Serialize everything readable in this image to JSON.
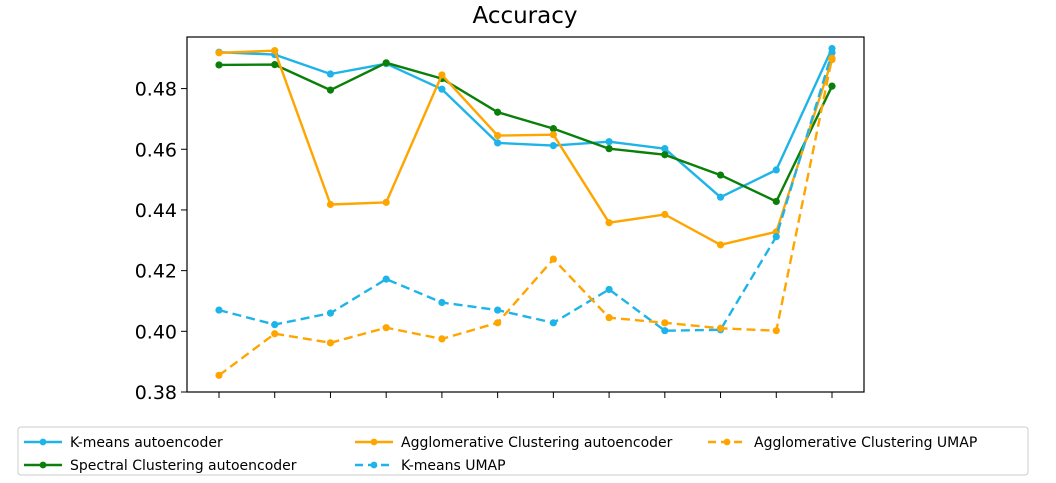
{
  "chart_data": {
    "type": "line",
    "title": "Accuracy",
    "xlabel": "",
    "ylabel": "",
    "x": [
      0,
      1,
      2,
      3,
      4,
      5,
      6,
      7,
      8,
      9,
      10,
      11
    ],
    "ylim": [
      0.38,
      0.497
    ],
    "yticks": [
      "0.38",
      "0.40",
      "0.42",
      "0.44",
      "0.46",
      "0.48"
    ],
    "grid": false,
    "legend_position": "bottom",
    "series": [
      {
        "name": "K-means autoencoder",
        "color": "#1fb4e9",
        "dash": "solid",
        "values": [
          0.492,
          0.4912,
          0.4848,
          0.4882,
          0.4798,
          0.4621,
          0.4612,
          0.4625,
          0.4602,
          0.4442,
          0.4532,
          0.4932
        ]
      },
      {
        "name": "Spectral Clustering autoencoder",
        "color": "#0a800a",
        "dash": "solid",
        "values": [
          0.4878,
          0.4879,
          0.4795,
          0.4885,
          0.4833,
          0.4722,
          0.4668,
          0.4602,
          0.4582,
          0.4515,
          0.4428,
          0.4808
        ]
      },
      {
        "name": "Agglomerative Clustering autoencoder",
        "color": "#ffa500",
        "dash": "solid",
        "values": [
          0.4918,
          0.4925,
          0.4418,
          0.4425,
          0.4845,
          0.4645,
          0.4648,
          0.4358,
          0.4385,
          0.4285,
          0.4328,
          0.4895
        ]
      },
      {
        "name": "K-means UMAP",
        "color": "#1fb4e9",
        "dash": "dashed",
        "values": [
          0.407,
          0.4022,
          0.406,
          0.4172,
          0.4095,
          0.407,
          0.4028,
          0.4138,
          0.4002,
          0.4005,
          0.4312,
          0.4918
        ]
      },
      {
        "name": "Agglomerative Clustering UMAP",
        "color": "#ffa500",
        "dash": "dashed",
        "values": [
          0.3855,
          0.3992,
          0.3962,
          0.4012,
          0.3975,
          0.4028,
          0.4238,
          0.4045,
          0.4028,
          0.401,
          0.4002,
          0.49
        ]
      }
    ]
  }
}
